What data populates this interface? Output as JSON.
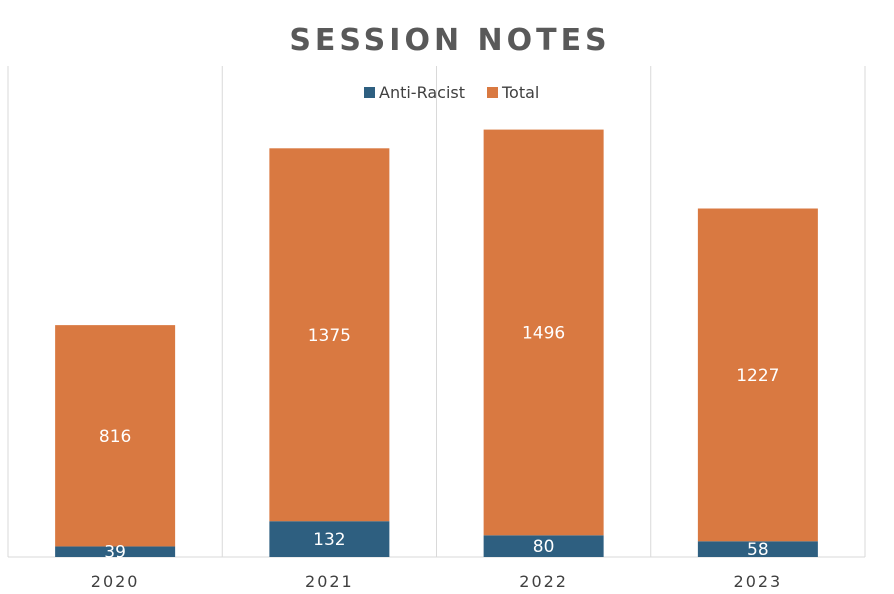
{
  "chart_data": {
    "type": "bar",
    "stacked": true,
    "title": "SESSION NOTES",
    "categories": [
      "2020",
      "2021",
      "2022",
      "2023"
    ],
    "series": [
      {
        "name": "Anti-Racist",
        "values": [
          39,
          132,
          80,
          58
        ],
        "color": "#2E5F80"
      },
      {
        "name": "Total",
        "values": [
          816,
          1375,
          1496,
          1227
        ],
        "color": "#D97941"
      }
    ],
    "ylim": [
      0,
      1800
    ],
    "legend": "top",
    "grid": "vertical category separators",
    "data_labels": true
  }
}
